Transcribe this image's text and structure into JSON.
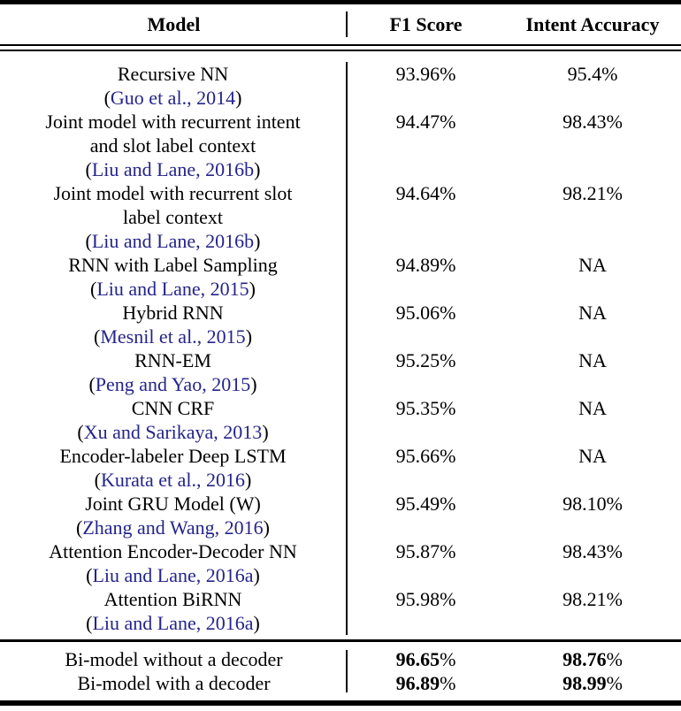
{
  "colors": {
    "citation_blue": "#24248c",
    "text_black": "#000000",
    "page_background": "#ffffff"
  },
  "table": {
    "columns": [
      "Model",
      "F1 Score",
      "Intent Accuracy"
    ],
    "rows": [
      {
        "model_lines": [
          {
            "text": "Recursive NN",
            "cite": false
          },
          {
            "text": "(Guo et al., 2014)",
            "cite": true
          }
        ],
        "f1": "93.96%",
        "intent": "95.4%",
        "bold": false
      },
      {
        "model_lines": [
          {
            "text": "Joint model with recurrent intent",
            "cite": false
          },
          {
            "text": "and slot label context",
            "cite": false
          },
          {
            "text": "(Liu and Lane, 2016b)",
            "cite": true
          }
        ],
        "f1": "94.47%",
        "intent": "98.43%",
        "bold": false
      },
      {
        "model_lines": [
          {
            "text": "Joint model with recurrent slot",
            "cite": false
          },
          {
            "text": "label context",
            "cite": false
          },
          {
            "text": "(Liu and Lane, 2016b)",
            "cite": true
          }
        ],
        "f1": "94.64%",
        "intent": "98.21%",
        "bold": false
      },
      {
        "model_lines": [
          {
            "text": "RNN with Label Sampling",
            "cite": false
          },
          {
            "text": "(Liu and Lane, 2015)",
            "cite": true
          }
        ],
        "f1": "94.89%",
        "intent": "NA",
        "bold": false
      },
      {
        "model_lines": [
          {
            "text": "Hybrid RNN",
            "cite": false
          },
          {
            "text": "(Mesnil et al., 2015)",
            "cite": true
          }
        ],
        "f1": "95.06%",
        "intent": "NA",
        "bold": false
      },
      {
        "model_lines": [
          {
            "text": "RNN-EM",
            "cite": false
          },
          {
            "text": "(Peng and Yao, 2015)",
            "cite": true
          }
        ],
        "f1": "95.25%",
        "intent": "NA",
        "bold": false
      },
      {
        "model_lines": [
          {
            "text": "CNN CRF",
            "cite": false
          },
          {
            "text": "(Xu and Sarikaya, 2013)",
            "cite": true
          }
        ],
        "f1": "95.35%",
        "intent": "NA",
        "bold": false
      },
      {
        "model_lines": [
          {
            "text": "Encoder-labeler Deep LSTM",
            "cite": false
          },
          {
            "text": "(Kurata et al., 2016)",
            "cite": true
          }
        ],
        "f1": "95.66%",
        "intent": "NA",
        "bold": false
      },
      {
        "model_lines": [
          {
            "text": "Joint GRU Model (W)",
            "cite": false
          },
          {
            "text": "(Zhang and Wang, 2016)",
            "cite": true
          }
        ],
        "f1": "95.49%",
        "intent": "98.10%",
        "bold": false
      },
      {
        "model_lines": [
          {
            "text": "Attention Encoder-Decoder NN",
            "cite": false
          },
          {
            "text": "(Liu and Lane, 2016a)",
            "cite": true
          }
        ],
        "f1": "95.87%",
        "intent": "98.43%",
        "bold": false
      },
      {
        "model_lines": [
          {
            "text": "Attention BiRNN",
            "cite": false
          },
          {
            "text": "(Liu and Lane, 2016a)",
            "cite": true
          }
        ],
        "f1": "95.98%",
        "intent": "98.21%",
        "bold": false
      }
    ],
    "footer_rows": [
      {
        "model_lines": [
          {
            "text": "Bi-model without a decoder",
            "cite": false
          }
        ],
        "f1": "96.65%",
        "intent": "98.76%",
        "bold": true
      },
      {
        "model_lines": [
          {
            "text": "Bi-model with a decoder",
            "cite": false
          }
        ],
        "f1": "96.89%",
        "intent": "98.99%",
        "bold": true
      }
    ]
  }
}
